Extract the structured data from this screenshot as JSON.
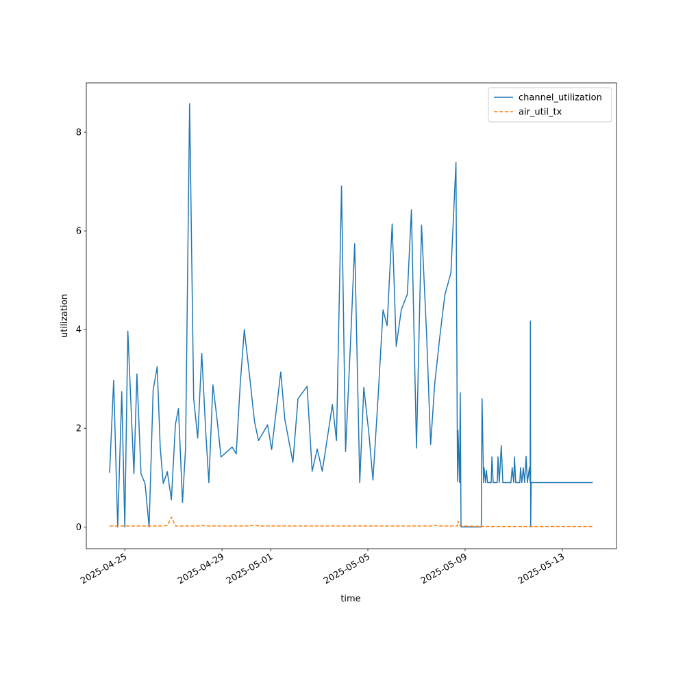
{
  "chart_data": {
    "type": "line",
    "xlabel": "time",
    "ylabel": "utilization",
    "x": [
      "2025-04-24 09:00",
      "2025-04-24 13:00",
      "2025-04-24 17:00",
      "2025-04-24 21:00",
      "2025-04-25 00:00",
      "2025-04-25 03:00",
      "2025-04-25 09:00",
      "2025-04-25 12:00",
      "2025-04-25 16:00",
      "2025-04-25 20:00",
      "2025-04-26 00:00",
      "2025-04-26 04:00",
      "2025-04-26 08:00",
      "2025-04-26 11:00",
      "2025-04-26 14:00",
      "2025-04-26 18:00",
      "2025-04-26 22:00",
      "2025-04-27 02:00",
      "2025-04-27 05:00",
      "2025-04-27 09:00",
      "2025-04-27 12:00",
      "2025-04-27 16:00",
      "2025-04-27 20:00",
      "2025-04-28 00:00",
      "2025-04-28 04:00",
      "2025-04-28 08:00",
      "2025-04-28 11:00",
      "2025-04-28 15:00",
      "2025-04-28 19:00",
      "2025-04-28 23:00",
      "2025-04-29 10:00",
      "2025-04-29 14:00",
      "2025-04-29 18:00",
      "2025-04-29 22:00",
      "2025-04-30 03:00",
      "2025-04-30 08:00",
      "2025-04-30 12:00",
      "2025-04-30 21:00",
      "2025-05-01 01:00",
      "2025-05-01 10:00",
      "2025-05-01 14:00",
      "2025-05-01 22:00",
      "2025-05-02 03:00",
      "2025-05-02 12:00",
      "2025-05-02 17:00",
      "2025-05-02 22:00",
      "2025-05-03 03:00",
      "2025-05-03 13:00",
      "2025-05-03 17:00",
      "2025-05-03 22:00",
      "2025-05-04 02:00",
      "2025-05-04 07:00",
      "2025-05-04 11:00",
      "2025-05-04 16:00",
      "2025-05-04 20:00",
      "2025-05-05 01:00",
      "2025-05-05 05:00",
      "2025-05-05 10:00",
      "2025-05-05 15:00",
      "2025-05-05 19:00",
      "2025-05-06 00:00",
      "2025-05-06 04:00",
      "2025-05-06 09:00",
      "2025-05-06 15:00",
      "2025-05-06 19:00",
      "2025-05-07 00:00",
      "2025-05-07 05:00",
      "2025-05-07 10:00",
      "2025-05-07 14:00",
      "2025-05-07 18:00",
      "2025-05-07 23:00",
      "2025-05-08 04:00",
      "2025-05-08 10:00",
      "2025-05-08 15:00",
      "2025-05-08 16:30",
      "2025-05-08 17:00",
      "2025-05-08 18:30",
      "2025-05-08 19:15",
      "2025-05-08 20:00",
      "2025-05-09 16:00",
      "2025-05-09 16:45",
      "2025-05-09 18:15",
      "2025-05-09 18:45",
      "2025-05-09 20:15",
      "2025-05-09 21:00",
      "2025-05-09 22:15",
      "2025-05-10 01:45",
      "2025-05-10 02:30",
      "2025-05-10 03:45",
      "2025-05-10 07:45",
      "2025-05-10 08:30",
      "2025-05-10 09:45",
      "2025-05-10 11:45",
      "2025-05-10 13:15",
      "2025-05-10 21:15",
      "2025-05-10 22:30",
      "2025-05-11 00:00",
      "2025-05-11 00:45",
      "2025-05-11 02:00",
      "2025-05-11 06:00",
      "2025-05-11 06:45",
      "2025-05-11 08:00",
      "2025-05-11 09:30",
      "2025-05-11 10:45",
      "2025-05-11 12:15",
      "2025-05-11 13:30",
      "2025-05-11 15:30",
      "2025-05-11 16:15",
      "2025-05-11 16:30",
      "2025-05-11 16:45",
      "2025-05-11 17:15",
      "2025-05-14 06:00"
    ],
    "series": [
      {
        "name": "channel_utilization",
        "color": "#1f77b4",
        "dash": false,
        "values": [
          1.1,
          2.97,
          0,
          2.74,
          0,
          3.97,
          1.08,
          3.1,
          1.08,
          0.88,
          0,
          2.77,
          3.25,
          1.6,
          0.88,
          1.12,
          0.55,
          2.08,
          2.4,
          0.5,
          1.6,
          8.58,
          2.6,
          1.8,
          3.52,
          1.9,
          0.9,
          2.88,
          2.2,
          1.42,
          1.62,
          1.48,
          2.9,
          4.0,
          3.1,
          2.15,
          1.75,
          2.07,
          1.57,
          3.14,
          2.18,
          1.31,
          2.6,
          2.85,
          1.13,
          1.58,
          1.13,
          2.48,
          1.75,
          6.91,
          1.53,
          3.8,
          5.74,
          0.9,
          2.83,
          1.9,
          0.95,
          2.6,
          4.4,
          4.08,
          6.14,
          3.66,
          4.4,
          4.72,
          6.43,
          1.6,
          6.12,
          3.9,
          1.67,
          2.9,
          3.85,
          4.7,
          5.15,
          7.39,
          0.92,
          1.96,
          0.9,
          2.72,
          0,
          0,
          2.6,
          0.9,
          1.2,
          0.9,
          1.15,
          0.9,
          0.9,
          1.42,
          0.9,
          0.9,
          1.42,
          0.9,
          1.65,
          0.9,
          0.9,
          1.2,
          0.9,
          1.42,
          0.9,
          0.9,
          1.2,
          0.9,
          1.2,
          0.9,
          1.43,
          0.9,
          1.2,
          0.9,
          4.17,
          0,
          0.9,
          0.9
        ]
      },
      {
        "name": "air_util_tx",
        "color": "#ff7f0e",
        "dash": true,
        "values": [
          0.02,
          0.02,
          0.02,
          0.02,
          0.02,
          0.02,
          0.02,
          0.02,
          0.02,
          0.02,
          0.02,
          0.02,
          0.02,
          0.02,
          0.02,
          0.03,
          0.2,
          0.02,
          0.02,
          0.02,
          0.02,
          0.02,
          0.02,
          0.02,
          0.03,
          0.02,
          0.02,
          0.02,
          0.02,
          0.02,
          0.02,
          0.02,
          0.02,
          0.02,
          0.02,
          0.04,
          0.02,
          0.02,
          0.02,
          0.02,
          0.02,
          0.02,
          0.02,
          0.02,
          0.02,
          0.02,
          0.02,
          0.02,
          0.02,
          0.02,
          0.02,
          0.02,
          0.02,
          0.02,
          0.02,
          0.02,
          0.02,
          0.02,
          0.02,
          0.02,
          0.02,
          0.02,
          0.02,
          0.02,
          0.02,
          0.02,
          0.02,
          0.02,
          0.02,
          0.03,
          0.02,
          0.02,
          0.02,
          0.02,
          0.02,
          0.12,
          0.06,
          0.02,
          0.02,
          0.01,
          0.01,
          0.01,
          0.01,
          0.01,
          0.01,
          0.01,
          0.01,
          0.01,
          0.01,
          0.01,
          0.01,
          0.01,
          0.01,
          0.01,
          0.01,
          0.01,
          0.01,
          0.01,
          0.01,
          0.01,
          0.01,
          0.01,
          0.01,
          0.01,
          0.01,
          0.01,
          0.01,
          0.01,
          0.01,
          0.01,
          0.01,
          0.01
        ]
      }
    ],
    "xlim": [
      "2025-04-23 10:00",
      "2025-05-15 05:30"
    ],
    "xticks": [
      "2025-04-25",
      "2025-04-29",
      "2025-05-01",
      "2025-05-05",
      "2025-05-09",
      "2025-05-13"
    ],
    "ylim": [
      -0.44,
      9.0
    ],
    "yticks": [
      0,
      2,
      4,
      6,
      8
    ],
    "legend": "upper right",
    "grid": false
  }
}
